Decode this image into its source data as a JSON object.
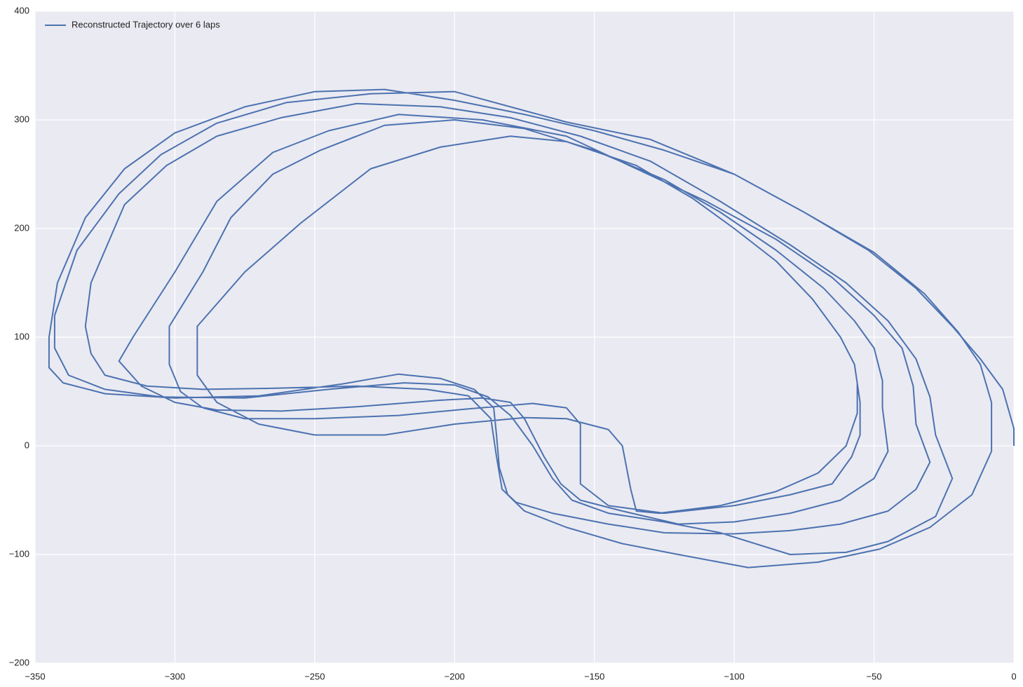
{
  "chart_data": {
    "type": "line",
    "series": [
      {
        "name": "Reconstructed Trajectory over 6 laps",
        "color": "#4c72b0",
        "values": [
          0,
          16,
          52,
          80,
          110,
          145,
          180,
          215,
          250,
          272,
          290,
          305,
          318,
          328,
          326,
          312,
          288,
          255,
          210,
          150,
          100,
          72,
          58,
          48,
          44,
          46,
          57,
          66,
          62,
          52,
          35,
          10,
          -20,
          -45,
          -60,
          -75,
          -90,
          -100,
          -112,
          -107,
          -95,
          -75,
          -45,
          -5,
          40,
          75,
          105,
          140,
          178,
          215,
          250,
          282,
          298,
          326,
          324,
          316,
          297,
          268,
          232,
          180,
          120,
          90,
          65,
          52,
          45,
          44,
          52,
          58,
          56,
          45,
          28,
          0,
          -30,
          -50,
          -62,
          -70,
          -80,
          -100,
          -98,
          -88,
          -65,
          -30,
          10,
          45,
          80,
          115,
          150,
          185,
          225,
          262,
          285,
          302,
          312,
          315,
          302,
          285,
          258,
          222,
          150,
          110,
          85,
          65,
          55,
          52,
          53,
          55,
          52,
          46,
          25,
          -10,
          -40,
          -52,
          -62,
          -72,
          -80,
          -81,
          -78,
          -72,
          -60,
          -40,
          -15,
          20,
          55,
          90,
          120,
          155,
          190,
          225,
          255,
          285,
          300,
          305,
          290,
          270,
          225,
          160,
          100,
          78,
          55,
          40,
          33,
          32,
          36,
          42,
          44,
          40,
          25,
          -10,
          -35,
          -50,
          -60,
          -72,
          -70,
          -62,
          -50,
          -30,
          -5,
          35,
          60,
          90,
          115,
          145,
          180,
          215,
          245,
          272,
          292,
          300,
          295,
          272,
          250,
          210,
          160,
          110,
          75,
          50,
          35,
          25,
          25,
          28,
          34,
          39,
          35,
          20,
          -5,
          -35,
          -55,
          -62,
          -55,
          -45,
          -35,
          -10,
          10,
          40,
          75,
          100,
          135,
          170,
          200,
          228,
          258,
          280,
          285,
          275,
          255,
          205,
          160,
          110,
          65,
          40,
          20,
          10,
          10,
          20,
          26,
          25,
          15,
          0,
          -40,
          -60,
          -62,
          -55,
          -42,
          -25,
          0,
          30,
          58
        ]
      }
    ],
    "x": [
      0,
      0,
      -4,
      -12,
      -22,
      -35,
      -52,
      -75,
      -100,
      -125,
      -150,
      -175,
      -200,
      -225,
      -250,
      -275,
      -300,
      -318,
      -332,
      -342,
      -345,
      -345,
      -340,
      -325,
      -300,
      -270,
      -240,
      -220,
      -205,
      -193,
      -186,
      -185,
      -184,
      -181,
      -175,
      -160,
      -140,
      -120,
      -95,
      -70,
      -48,
      -30,
      -15,
      -8,
      -8,
      -12,
      -20,
      -32,
      -50,
      -75,
      -100,
      -130,
      -160,
      -200,
      -230,
      -260,
      -285,
      -305,
      -320,
      -335,
      -343,
      -343,
      -338,
      -325,
      -305,
      -275,
      -245,
      -218,
      -200,
      -188,
      -180,
      -172,
      -165,
      -158,
      -145,
      -125,
      -105,
      -80,
      -60,
      -45,
      -28,
      -22,
      -28,
      -30,
      -35,
      -45,
      -60,
      -80,
      -105,
      -130,
      -155,
      -180,
      -205,
      -235,
      -262,
      -285,
      -303,
      -318,
      -330,
      -332,
      -330,
      -325,
      -310,
      -290,
      -265,
      -235,
      -210,
      -195,
      -187,
      -185,
      -183,
      -178,
      -165,
      -145,
      -125,
      -100,
      -80,
      -62,
      -45,
      -35,
      -30,
      -35,
      -36,
      -40,
      -50,
      -65,
      -85,
      -110,
      -135,
      -160,
      -190,
      -220,
      -245,
      -265,
      -285,
      -300,
      -315,
      -320,
      -312,
      -300,
      -285,
      -262,
      -235,
      -205,
      -190,
      -180,
      -175,
      -168,
      -162,
      -155,
      -140,
      -120,
      -100,
      -80,
      -62,
      -50,
      -45,
      -47,
      -47,
      -50,
      -57,
      -68,
      -85,
      -105,
      -125,
      -150,
      -175,
      -200,
      -225,
      -248,
      -265,
      -280,
      -290,
      -302,
      -302,
      -298,
      -290,
      -275,
      -250,
      -220,
      -195,
      -172,
      -160,
      -155,
      -155,
      -155,
      -145,
      -125,
      -100,
      -80,
      -65,
      -58,
      -55,
      -55,
      -57,
      -62,
      -72,
      -85,
      -100,
      -115,
      -135,
      -160,
      -180,
      -205,
      -230,
      -255,
      -275,
      -292,
      -292,
      -285,
      -270,
      -250,
      -225,
      -200,
      -175,
      -160,
      -145,
      -140,
      -137,
      -135,
      -127,
      -105,
      -85,
      -70,
      -60,
      -56,
      -56
    ],
    "xlim": [
      -350,
      0
    ],
    "xticks": [
      {
        "value": -350,
        "label": "−350"
      },
      {
        "value": -300,
        "label": "−300"
      },
      {
        "value": -250,
        "label": "−250"
      },
      {
        "value": -200,
        "label": "−200"
      },
      {
        "value": -150,
        "label": "−150"
      },
      {
        "value": -100,
        "label": "−100"
      },
      {
        "value": -50,
        "label": "−50"
      },
      0
    ],
    "ylim": [
      -200,
      400
    ],
    "yticks": [
      {
        "value": -200,
        "label": "−200"
      },
      {
        "value": -100,
        "label": "−100"
      },
      0,
      100,
      200,
      300,
      400
    ],
    "grid": true,
    "legend": "upper left"
  }
}
